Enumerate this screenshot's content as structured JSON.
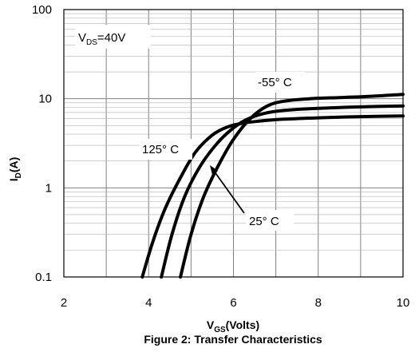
{
  "chart_data": {
    "type": "line",
    "title": "Figure 2: Transfer Characteristics",
    "xlabel": {
      "main": "V",
      "sub": "GS",
      "rest": "(Volts)"
    },
    "ylabel": {
      "main": "I",
      "sub": "D",
      "rest": "(A)"
    },
    "xlim": [
      2,
      10
    ],
    "ylim": [
      0.1,
      100
    ],
    "yscale": "log",
    "grid": true,
    "x_ticks": [
      "2",
      "4",
      "6",
      "8",
      "10"
    ],
    "y_ticks": [
      "0.1",
      "1",
      "10",
      "100"
    ],
    "condition": {
      "main": "V",
      "sub": "DS",
      "rest": "=40V"
    },
    "series": [
      {
        "name": "125° C",
        "points": [
          [
            3.85,
            0.1
          ],
          [
            4.1,
            0.25
          ],
          [
            4.4,
            0.6
          ],
          [
            4.75,
            1.3
          ],
          [
            5.1,
            2.5
          ],
          [
            5.5,
            3.9
          ],
          [
            5.85,
            4.8
          ],
          [
            6.2,
            5.3
          ],
          [
            6.6,
            5.6
          ],
          [
            7.2,
            5.9
          ],
          [
            8,
            6.1
          ],
          [
            9,
            6.3
          ],
          [
            10,
            6.4
          ]
        ]
      },
      {
        "name": "25° C",
        "points": [
          [
            4.3,
            0.1
          ],
          [
            4.55,
            0.3
          ],
          [
            4.85,
            0.8
          ],
          [
            5.2,
            1.7
          ],
          [
            5.6,
            3.1
          ],
          [
            5.95,
            4.5
          ],
          [
            6.3,
            5.8
          ],
          [
            6.7,
            6.8
          ],
          [
            7.2,
            7.4
          ],
          [
            8,
            7.8
          ],
          [
            9,
            8.1
          ],
          [
            10,
            8.3
          ]
        ]
      },
      {
        "name": "-55° C",
        "points": [
          [
            4.75,
            0.1
          ],
          [
            5.0,
            0.3
          ],
          [
            5.3,
            0.8
          ],
          [
            5.65,
            1.8
          ],
          [
            6.0,
            3.5
          ],
          [
            6.4,
            6.0
          ],
          [
            6.8,
            8.3
          ],
          [
            7.2,
            9.4
          ],
          [
            7.8,
            10.0
          ],
          [
            8.5,
            10.3
          ],
          [
            9.2,
            10.6
          ],
          [
            10,
            11.2
          ]
        ]
      }
    ],
    "annotations": [
      {
        "text": "-55° C"
      },
      {
        "text": "125° C"
      },
      {
        "text": "25° C"
      }
    ]
  }
}
